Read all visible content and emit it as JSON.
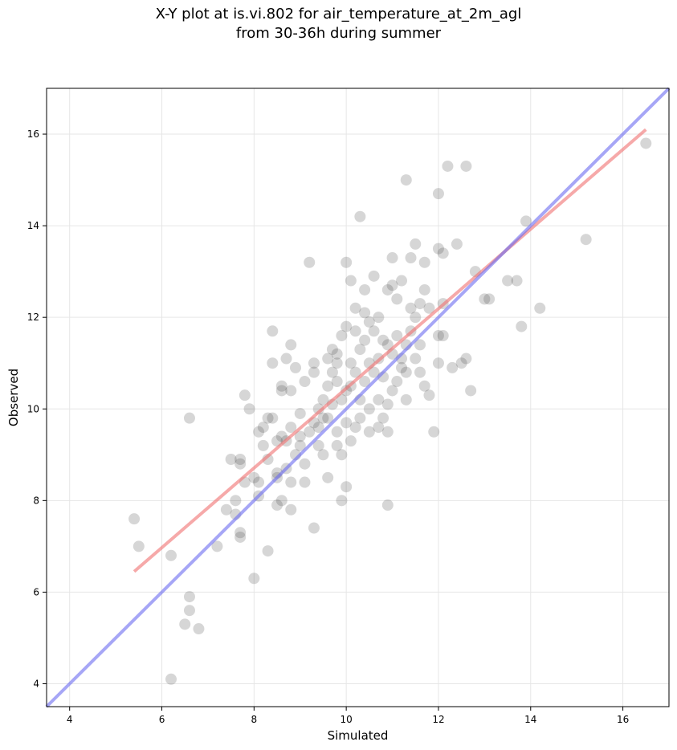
{
  "title_line1": "X-Y plot at is.vi.802 for air_temperature_at_2m_agl",
  "title_line2": "from 30-36h during summer",
  "chart_data": {
    "type": "scatter",
    "title": "X-Y plot at is.vi.802 for air_temperature_at_2m_agl from 30-36h during summer",
    "xlabel": "Simulated",
    "ylabel": "Observed",
    "xlim": [
      3.5,
      17.0
    ],
    "ylim": [
      3.5,
      17.0
    ],
    "xticks": [
      4,
      6,
      8,
      10,
      12,
      14,
      16
    ],
    "yticks": [
      4,
      6,
      8,
      10,
      12,
      14,
      16
    ],
    "grid": true,
    "colors": {
      "points": "#333333",
      "regression": "#f07070",
      "identity": "#6a6af0"
    },
    "series": [
      {
        "points": [
          [
            5.4,
            7.6
          ],
          [
            5.5,
            7.0
          ],
          [
            6.2,
            6.8
          ],
          [
            6.2,
            4.1
          ],
          [
            6.5,
            5.3
          ],
          [
            6.6,
            5.9
          ],
          [
            6.6,
            5.6
          ],
          [
            6.6,
            9.8
          ],
          [
            6.8,
            5.2
          ],
          [
            7.2,
            7.0
          ],
          [
            7.4,
            7.8
          ],
          [
            7.5,
            8.9
          ],
          [
            7.6,
            8.0
          ],
          [
            7.6,
            7.7
          ],
          [
            7.7,
            7.3
          ],
          [
            7.7,
            7.2
          ],
          [
            7.7,
            8.8
          ],
          [
            7.7,
            8.9
          ],
          [
            7.8,
            8.4
          ],
          [
            7.8,
            10.3
          ],
          [
            7.9,
            10.0
          ],
          [
            8.0,
            6.3
          ],
          [
            8.0,
            8.5
          ],
          [
            8.1,
            8.4
          ],
          [
            8.1,
            8.1
          ],
          [
            8.1,
            9.5
          ],
          [
            8.2,
            9.6
          ],
          [
            8.2,
            9.2
          ],
          [
            8.3,
            9.8
          ],
          [
            8.3,
            8.9
          ],
          [
            8.3,
            6.9
          ],
          [
            8.4,
            9.8
          ],
          [
            8.4,
            11.0
          ],
          [
            8.4,
            11.7
          ],
          [
            8.5,
            9.3
          ],
          [
            8.5,
            8.6
          ],
          [
            8.5,
            8.5
          ],
          [
            8.5,
            7.9
          ],
          [
            8.6,
            8.0
          ],
          [
            8.6,
            10.5
          ],
          [
            8.6,
            10.4
          ],
          [
            8.6,
            9.4
          ],
          [
            8.7,
            9.3
          ],
          [
            8.7,
            8.7
          ],
          [
            8.7,
            11.1
          ],
          [
            8.8,
            11.4
          ],
          [
            8.8,
            10.4
          ],
          [
            8.8,
            9.6
          ],
          [
            8.8,
            8.4
          ],
          [
            8.8,
            7.8
          ],
          [
            8.9,
            9.0
          ],
          [
            8.9,
            10.9
          ],
          [
            9.0,
            9.4
          ],
          [
            9.0,
            9.9
          ],
          [
            9.0,
            9.2
          ],
          [
            9.1,
            8.8
          ],
          [
            9.1,
            8.4
          ],
          [
            9.1,
            10.6
          ],
          [
            9.2,
            13.2
          ],
          [
            9.2,
            9.5
          ],
          [
            9.3,
            10.8
          ],
          [
            9.3,
            11.0
          ],
          [
            9.3,
            9.7
          ],
          [
            9.3,
            7.4
          ],
          [
            9.4,
            10.0
          ],
          [
            9.4,
            9.6
          ],
          [
            9.4,
            9.2
          ],
          [
            9.5,
            10.2
          ],
          [
            9.5,
            9.8
          ],
          [
            9.5,
            9.0
          ],
          [
            9.6,
            9.8
          ],
          [
            9.6,
            10.5
          ],
          [
            9.6,
            11.1
          ],
          [
            9.6,
            8.5
          ],
          [
            9.7,
            11.3
          ],
          [
            9.7,
            10.8
          ],
          [
            9.7,
            10.1
          ],
          [
            9.8,
            9.5
          ],
          [
            9.8,
            10.6
          ],
          [
            9.8,
            11.0
          ],
          [
            9.8,
            9.2
          ],
          [
            9.8,
            11.2
          ],
          [
            9.9,
            10.2
          ],
          [
            9.9,
            11.6
          ],
          [
            9.9,
            8.0
          ],
          [
            9.9,
            9.0
          ],
          [
            10.0,
            9.7
          ],
          [
            10.0,
            10.4
          ],
          [
            10.0,
            11.8
          ],
          [
            10.0,
            13.2
          ],
          [
            10.0,
            8.3
          ],
          [
            10.1,
            10.5
          ],
          [
            10.1,
            11.0
          ],
          [
            10.1,
            12.8
          ],
          [
            10.1,
            9.3
          ],
          [
            10.2,
            10.8
          ],
          [
            10.2,
            9.6
          ],
          [
            10.2,
            11.7
          ],
          [
            10.2,
            12.2
          ],
          [
            10.3,
            10.2
          ],
          [
            10.3,
            11.3
          ],
          [
            10.3,
            14.2
          ],
          [
            10.3,
            9.8
          ],
          [
            10.4,
            11.5
          ],
          [
            10.4,
            10.6
          ],
          [
            10.4,
            12.1
          ],
          [
            10.4,
            12.6
          ],
          [
            10.5,
            11.0
          ],
          [
            10.5,
            9.5
          ],
          [
            10.5,
            10.0
          ],
          [
            10.5,
            11.9
          ],
          [
            10.6,
            10.8
          ],
          [
            10.6,
            11.7
          ],
          [
            10.6,
            12.9
          ],
          [
            10.7,
            11.1
          ],
          [
            10.7,
            10.2
          ],
          [
            10.7,
            9.6
          ],
          [
            10.7,
            12.0
          ],
          [
            10.8,
            10.7
          ],
          [
            10.8,
            11.5
          ],
          [
            10.8,
            9.8
          ],
          [
            10.9,
            11.4
          ],
          [
            10.9,
            10.1
          ],
          [
            10.9,
            12.6
          ],
          [
            10.9,
            7.9
          ],
          [
            10.9,
            9.5
          ],
          [
            11.0,
            11.2
          ],
          [
            11.0,
            10.4
          ],
          [
            11.0,
            12.7
          ],
          [
            11.0,
            13.3
          ],
          [
            11.1,
            11.6
          ],
          [
            11.1,
            10.6
          ],
          [
            11.1,
            12.4
          ],
          [
            11.2,
            11.1
          ],
          [
            11.2,
            10.9
          ],
          [
            11.2,
            12.8
          ],
          [
            11.3,
            15.0
          ],
          [
            11.3,
            10.8
          ],
          [
            11.3,
            11.4
          ],
          [
            11.3,
            10.2
          ],
          [
            11.4,
            12.2
          ],
          [
            11.4,
            13.3
          ],
          [
            11.4,
            11.7
          ],
          [
            11.5,
            11.1
          ],
          [
            11.5,
            12.0
          ],
          [
            11.5,
            13.6
          ],
          [
            11.6,
            10.8
          ],
          [
            11.6,
            11.4
          ],
          [
            11.6,
            12.3
          ],
          [
            11.7,
            12.6
          ],
          [
            11.7,
            13.2
          ],
          [
            11.7,
            10.5
          ],
          [
            11.8,
            12.2
          ],
          [
            11.8,
            10.3
          ],
          [
            11.9,
            9.5
          ],
          [
            12.0,
            11.6
          ],
          [
            12.0,
            13.5
          ],
          [
            12.0,
            14.7
          ],
          [
            12.0,
            11.0
          ],
          [
            12.1,
            13.4
          ],
          [
            12.1,
            12.3
          ],
          [
            12.1,
            11.6
          ],
          [
            12.2,
            15.3
          ],
          [
            12.3,
            10.9
          ],
          [
            12.4,
            13.6
          ],
          [
            12.5,
            11.0
          ],
          [
            12.6,
            11.1
          ],
          [
            12.6,
            15.3
          ],
          [
            12.7,
            10.4
          ],
          [
            12.8,
            13.0
          ],
          [
            13.0,
            12.4
          ],
          [
            13.1,
            12.4
          ],
          [
            13.5,
            12.8
          ],
          [
            13.7,
            12.8
          ],
          [
            13.8,
            11.8
          ],
          [
            13.9,
            14.1
          ],
          [
            14.2,
            12.2
          ],
          [
            15.2,
            13.7
          ],
          [
            16.5,
            15.8
          ]
        ]
      }
    ],
    "regression_line": {
      "x": [
        5.4,
        16.5
      ],
      "y": [
        6.45,
        16.1
      ]
    },
    "identity_line": {
      "x": [
        3.5,
        17.0
      ],
      "y": [
        3.5,
        17.0
      ]
    }
  }
}
